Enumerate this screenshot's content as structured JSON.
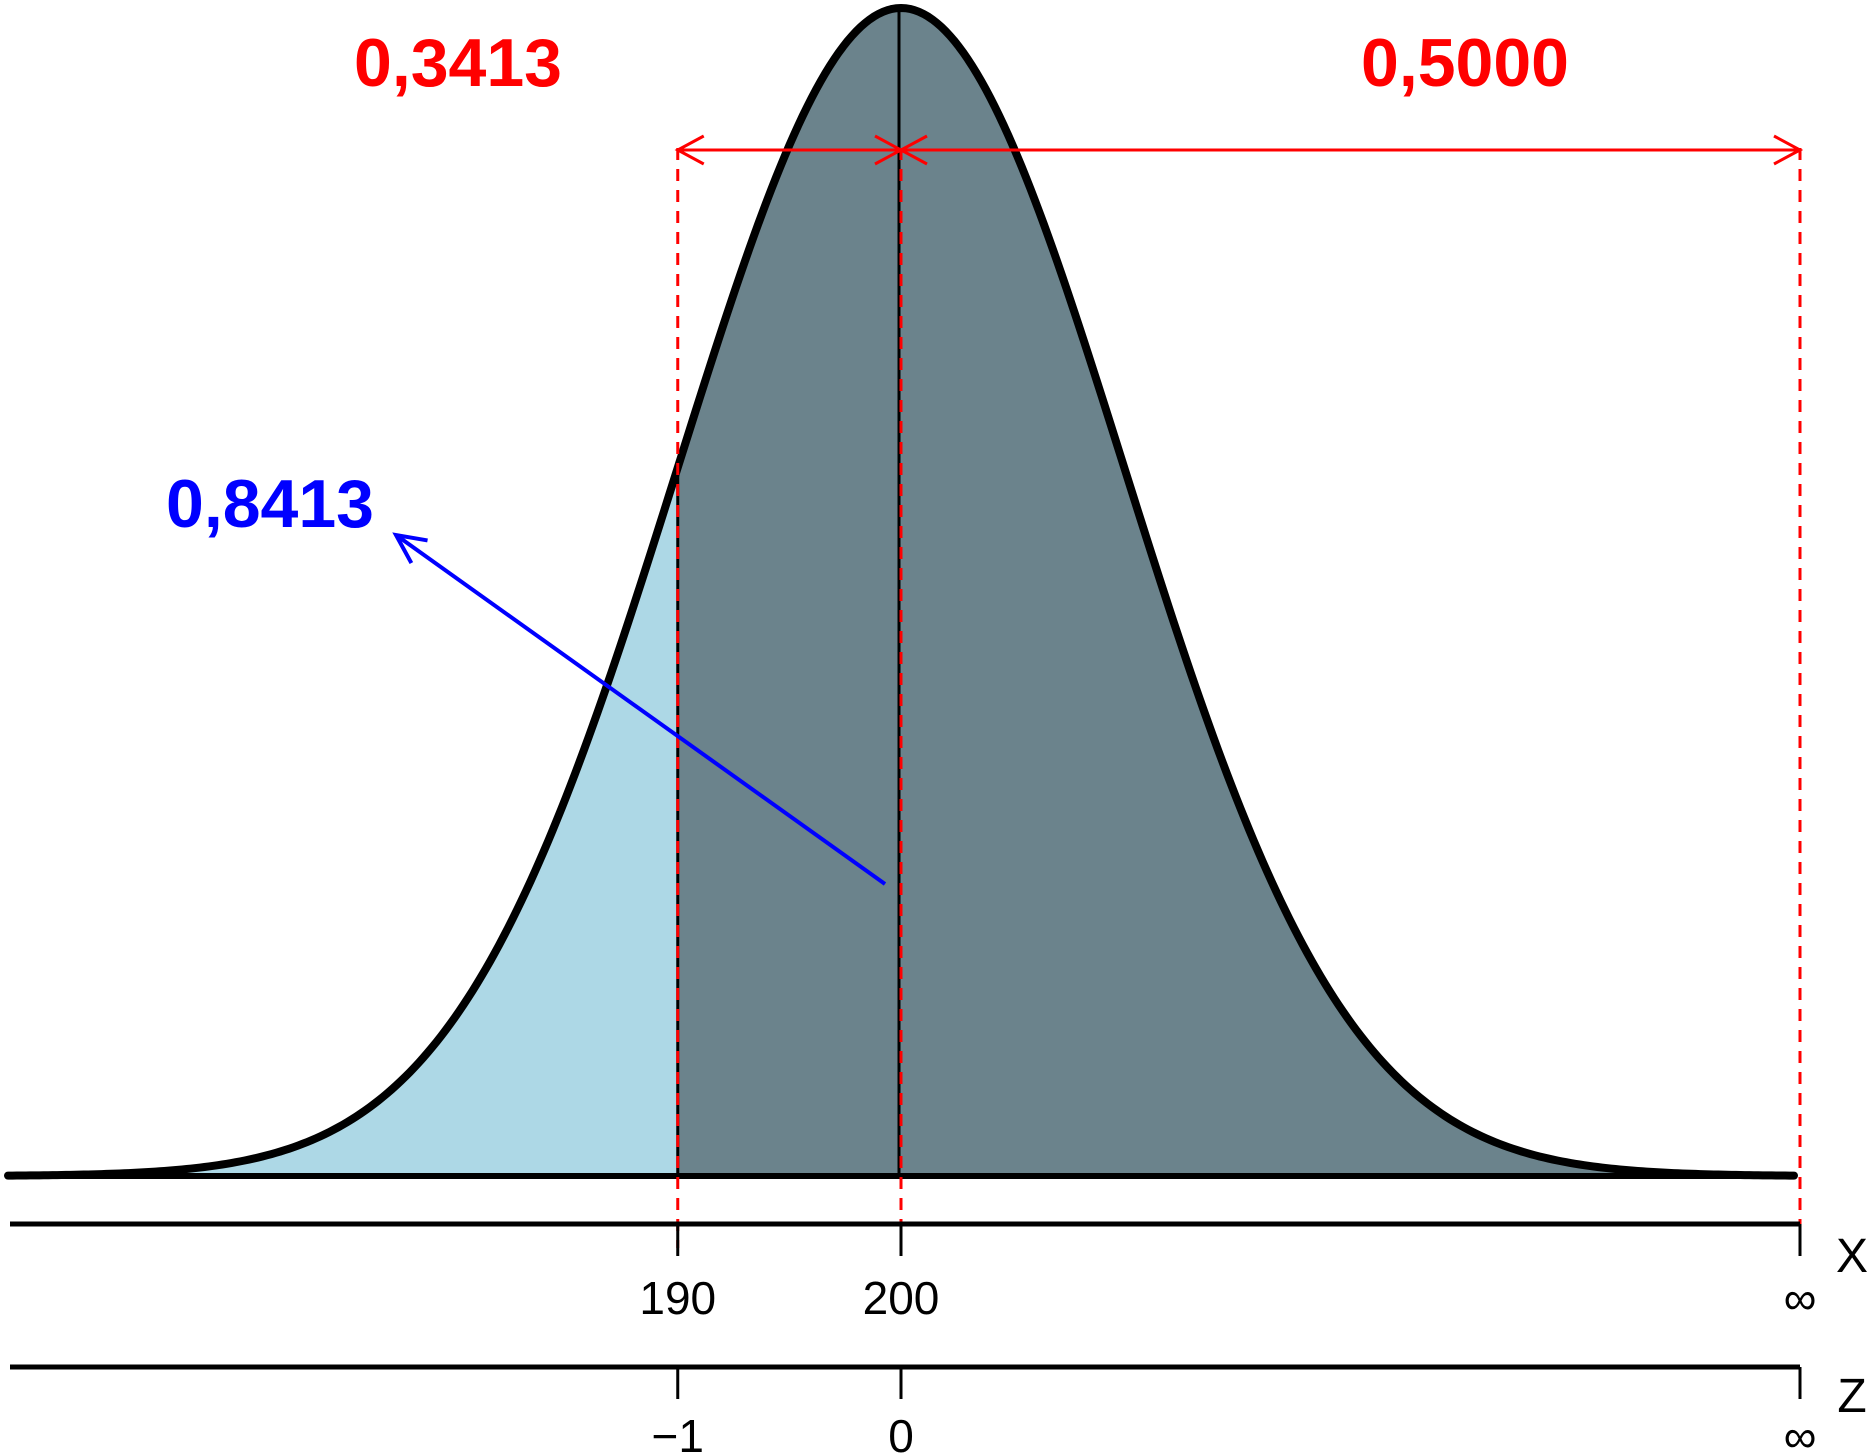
{
  "colors": {
    "left_tail_fill": "#add8e6",
    "main_fill": "#6b838c",
    "curve": "#000000",
    "guide_red": "#ff0000",
    "pointer_blue": "#0000ff"
  },
  "curve": {
    "mean": 200,
    "sd": 10,
    "x_range": [
      160,
      240
    ]
  },
  "labels": {
    "left_area": "0,3413",
    "right_area": "0,5000",
    "cumulative": "0,8413"
  },
  "x_axis": {
    "name": "X",
    "ticks": [
      {
        "value": 190,
        "label": "190"
      },
      {
        "value": 200,
        "label": "200"
      },
      {
        "value": 240,
        "label": "∞"
      }
    ]
  },
  "z_axis": {
    "name": "Z",
    "ticks": [
      {
        "value": -1,
        "label": "−1"
      },
      {
        "value": 0,
        "label": "0"
      },
      {
        "value": 4,
        "label": "∞"
      }
    ]
  }
}
